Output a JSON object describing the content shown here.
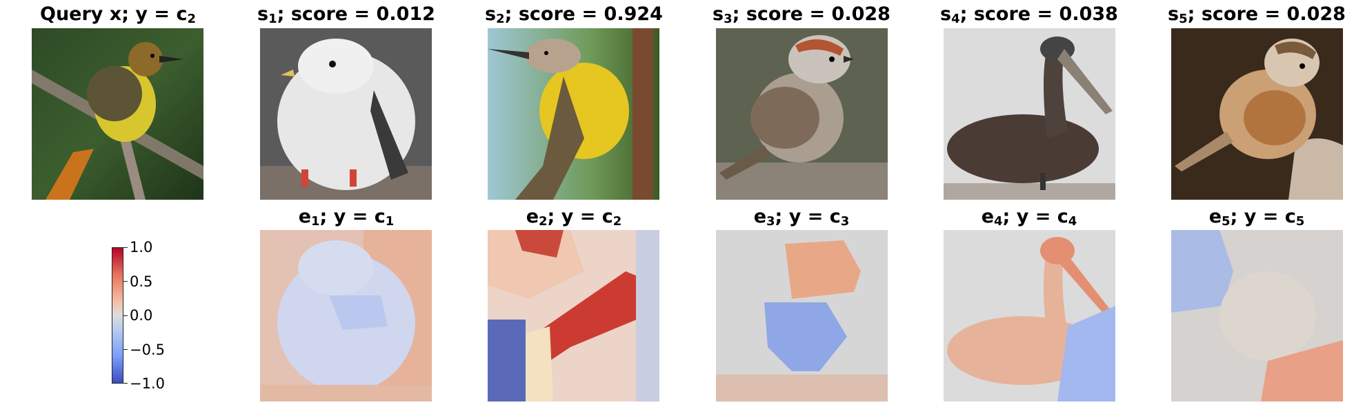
{
  "row_top": {
    "query": {
      "title_main": "Query x; y = c",
      "title_sub": "2"
    },
    "samples": [
      {
        "title_pre": "s",
        "title_sub": "1",
        "title_post": "; score = 0.012",
        "score": 0.012
      },
      {
        "title_pre": "s",
        "title_sub": "2",
        "title_post": "; score = 0.924",
        "score": 0.924
      },
      {
        "title_pre": "s",
        "title_sub": "3",
        "title_post": "; score = 0.028",
        "score": 0.028
      },
      {
        "title_pre": "s",
        "title_sub": "4",
        "title_post": "; score = 0.038",
        "score": 0.038
      },
      {
        "title_pre": "s",
        "title_sub": "5",
        "title_post": "; score = 0.028",
        "score": 0.028
      }
    ]
  },
  "row_bottom": {
    "explanations": [
      {
        "title_pre": "e",
        "title_sub": "1",
        "title_mid": "; y = c",
        "title_sub2": "1"
      },
      {
        "title_pre": "e",
        "title_sub": "2",
        "title_mid": "; y = c",
        "title_sub2": "2"
      },
      {
        "title_pre": "e",
        "title_sub": "3",
        "title_mid": "; y = c",
        "title_sub2": "3"
      },
      {
        "title_pre": "e",
        "title_sub": "4",
        "title_mid": "; y = c",
        "title_sub2": "4"
      },
      {
        "title_pre": "e",
        "title_sub": "5",
        "title_mid": "; y = c",
        "title_sub2": "5"
      }
    ]
  },
  "colorbar": {
    "ticks": [
      "1.0",
      "0.5",
      "0.0",
      "−0.5",
      "−1.0"
    ],
    "range": [
      -1.0,
      1.0
    ],
    "colormap": "coolwarm",
    "colors": {
      "high": "#b40426",
      "mid": "#dddddd",
      "low": "#3b4cc0"
    }
  }
}
